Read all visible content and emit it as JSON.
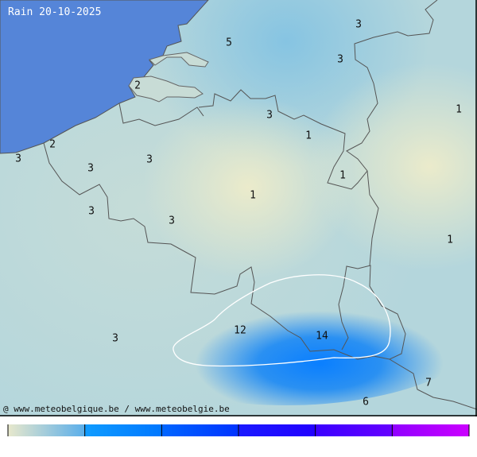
{
  "title": "Rain 20-10-2025",
  "credit": "@ www.meteobelgique.be / www.meteobelgie.be",
  "colors": {
    "sea": "#5585d8",
    "low": "#e8e8cc",
    "mid": "#8ecae6",
    "high": "#0a80ff",
    "contour": "#ffffff",
    "border": "#555555"
  },
  "values": [
    "3",
    "5",
    "3",
    "2",
    "1",
    "3",
    "1",
    "2",
    "3",
    "3",
    "3",
    "1",
    "1",
    "3",
    "3",
    "1",
    "12",
    "14",
    "3",
    "7",
    "6"
  ],
  "legend": {
    "stops": [
      "#e8e8cc",
      "#5aaeea",
      "#109cff",
      "#0077ff",
      "#0066ff",
      "#0033ff",
      "#1a1aff",
      "#2200ff",
      "#3a00ff",
      "#6600ff",
      "#9000ff",
      "#cc00ff"
    ]
  }
}
